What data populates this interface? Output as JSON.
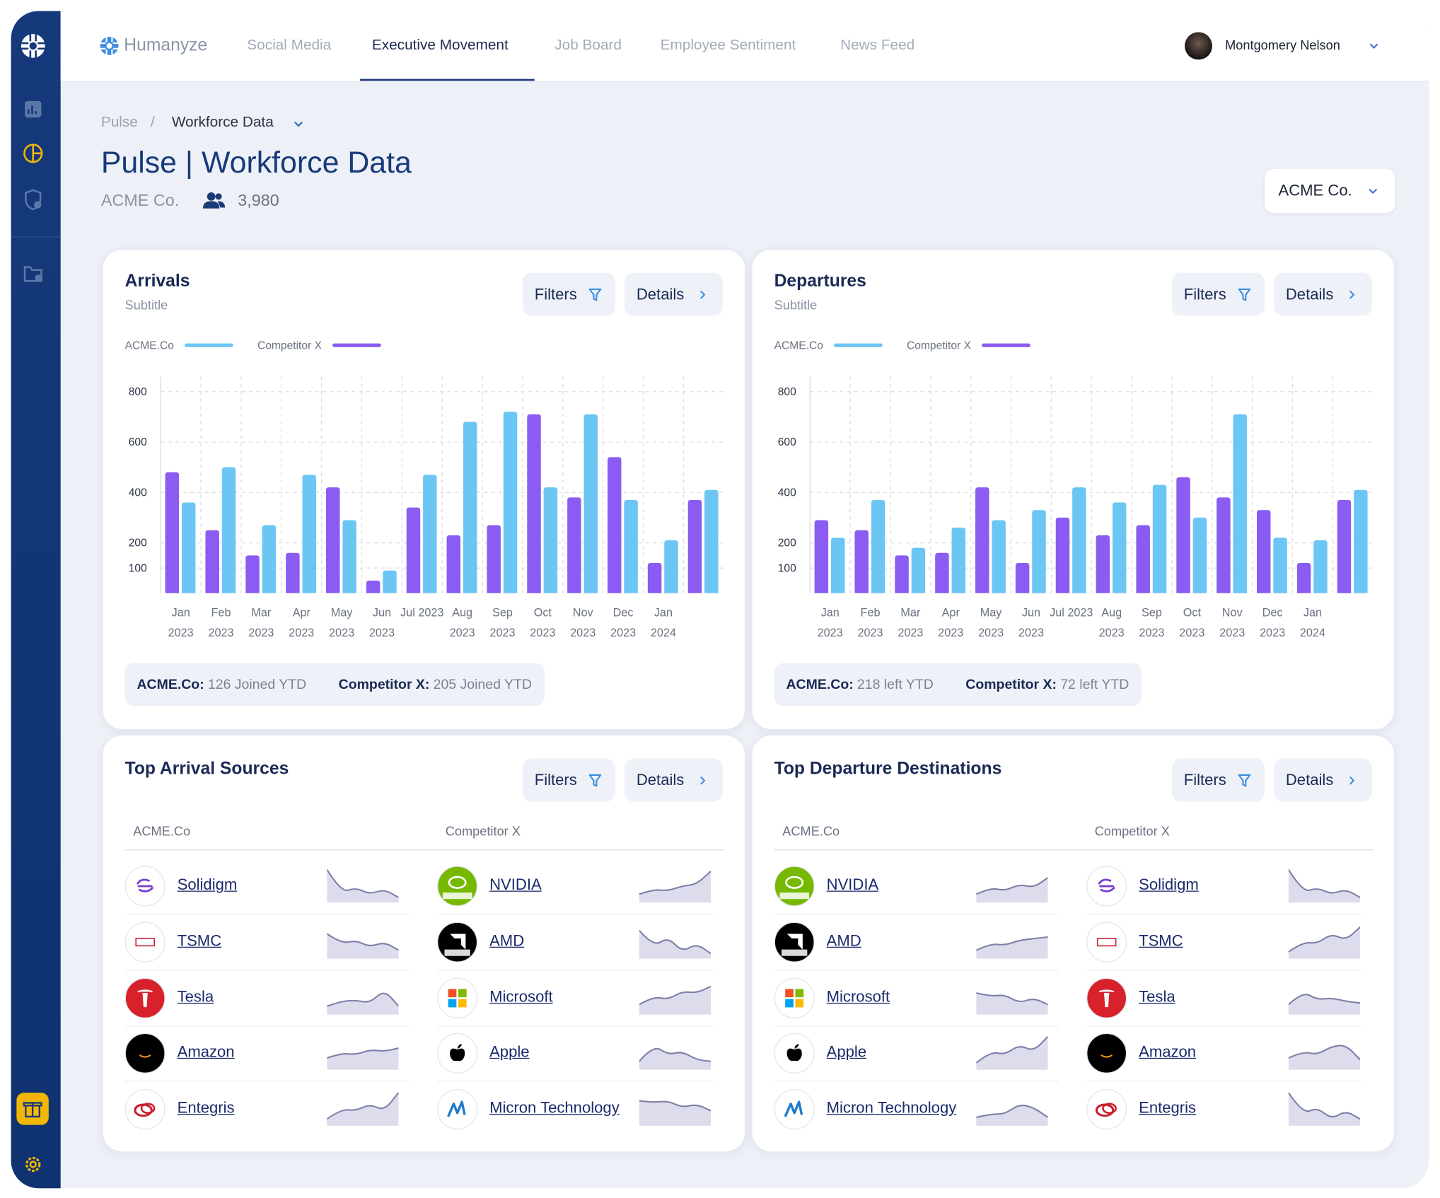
{
  "nav": {
    "brand": "Humanyze",
    "tabs": [
      "Social Media",
      "Executive Movement",
      "Job Board",
      "Employee Sentiment",
      "News Feed"
    ],
    "active_tab": 1,
    "user": "Montgomery Nelson"
  },
  "breadcrumb": [
    "Pulse",
    "/",
    "Workforce Data"
  ],
  "page_title": "Pulse | Workforce Data",
  "company": "ACME Co.",
  "headcount": "3,980",
  "company_select": "ACME Co.",
  "buttons": {
    "filters": "Filters",
    "details": "Details"
  },
  "chart_data": [
    {
      "type": "bar",
      "title": "Arrivals",
      "subtitle": "Subtitle",
      "categories": [
        "Jan 2023",
        "Feb 2023",
        "Mar 2023",
        "Apr 2023",
        "May 2023",
        "Jun 2023",
        "Jul 2023",
        "Aug 2023",
        "Sep 2023",
        "Oct 2023",
        "Nov 2023",
        "Dec 2023",
        "Jan 2024",
        null
      ],
      "series": [
        {
          "name": "ACME.Co",
          "color": "#6cc6f4",
          "values": [
            360,
            500,
            270,
            470,
            290,
            90,
            470,
            680,
            720,
            420,
            710,
            370,
            210,
            410
          ]
        },
        {
          "name": "Competitor X",
          "color": "#8b5cf1",
          "values": [
            480,
            250,
            150,
            160,
            420,
            50,
            340,
            230,
            270,
            710,
            380,
            540,
            120,
            370
          ]
        }
      ],
      "ylim": [
        0,
        860
      ],
      "yticks": [
        100,
        200,
        400,
        600,
        800
      ],
      "grid": true,
      "summary": [
        {
          "label": "ACME.Co:",
          "text": "126 Joined YTD"
        },
        {
          "label": "Competitor X:",
          "text": "205 Joined YTD"
        }
      ]
    },
    {
      "type": "bar",
      "title": "Departures",
      "subtitle": "Subtitle",
      "categories": [
        "Jan 2023",
        "Feb 2023",
        "Mar 2023",
        "Apr 2023",
        "May 2023",
        "Jun 2023",
        "Jul 2023",
        "Aug 2023",
        "Sep 2023",
        "Oct 2023",
        "Nov 2023",
        "Dec 2023",
        "Jan 2024",
        null
      ],
      "series": [
        {
          "name": "ACME.Co",
          "color": "#6cc6f4",
          "values": [
            220,
            370,
            180,
            260,
            290,
            330,
            420,
            360,
            430,
            300,
            710,
            220,
            210,
            410
          ]
        },
        {
          "name": "Competitor X",
          "color": "#8b5cf1",
          "values": [
            290,
            250,
            150,
            160,
            420,
            120,
            300,
            230,
            270,
            460,
            380,
            330,
            120,
            370
          ]
        }
      ],
      "ylim": [
        0,
        860
      ],
      "yticks": [
        100,
        200,
        400,
        600,
        800
      ],
      "grid": true,
      "summary": [
        {
          "label": "ACME.Co:",
          "text": "218 left YTD"
        },
        {
          "label": "Competitor X:",
          "text": "72 left YTD"
        }
      ]
    }
  ],
  "lists": [
    {
      "title": "Top Arrival Sources",
      "columns": [
        {
          "header": "ACME.Co",
          "companies": [
            "Solidigm",
            "TSMC",
            "Tesla",
            "Amazon",
            "Entegris"
          ]
        },
        {
          "header": "Competitor X",
          "companies": [
            "NVIDIA",
            "AMD",
            "Microsoft",
            "Apple",
            "Micron Technology"
          ]
        }
      ]
    },
    {
      "title": "Top Departure Destinations",
      "columns": [
        {
          "header": "ACME.Co",
          "companies": [
            "NVIDIA",
            "AMD",
            "Microsoft",
            "Apple",
            "Micron Technology"
          ]
        },
        {
          "header": "Competitor X",
          "companies": [
            "Solidigm",
            "TSMC",
            "Tesla",
            "Amazon",
            "Entegris"
          ]
        }
      ]
    }
  ]
}
